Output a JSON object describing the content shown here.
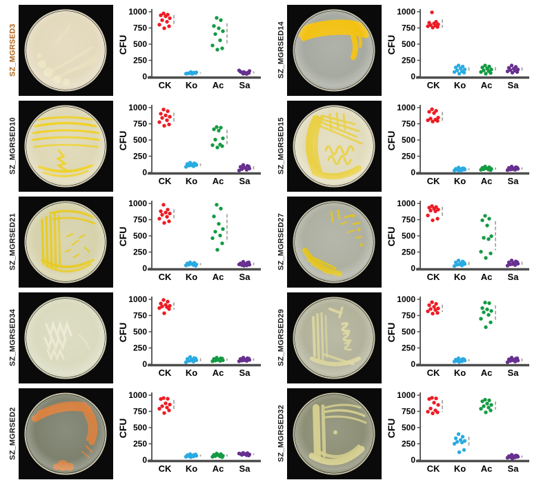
{
  "figure": {
    "background": "#ffffff",
    "categories": [
      "CK",
      "Ko",
      "Ac",
      "Sa"
    ],
    "category_colors": {
      "CK": "#ed1c24",
      "Ko": "#29abe2",
      "Ac": "#149b43",
      "Sa": "#67308f"
    },
    "axis_color": "#4d4d4d",
    "errorbar_color": "#a0a0a0",
    "ylabel": "CFU",
    "yticks": [
      0,
      250,
      500,
      750,
      1000
    ],
    "ylim": [
      0,
      1000
    ]
  },
  "panels": [
    {
      "label": "SZ_MGRSED3",
      "label_color": "#b06820",
      "dish": {
        "bg": "#0a0a0a",
        "agar": "#e3d9bd",
        "rim": "#f0e9d0",
        "growth": "#efe6c4",
        "pattern": "faint-streaks"
      }
    },
    {
      "label": "SZ_MGRSED14",
      "label_color": "#1d1d1b",
      "dish": {
        "bg": "#0a0a0a",
        "agar": "#a7aaa0",
        "rim": "#ded9c2",
        "growth": "#f2c113",
        "pattern": "top-band"
      }
    },
    {
      "label": "SZ_MGRSED10",
      "label_color": "#1d1d1b",
      "dish": {
        "bg": "#0a0a0a",
        "agar": "#ded8b6",
        "rim": "#eee7cc",
        "growth": "#f0d020",
        "pattern": "horizontal-streaks"
      }
    },
    {
      "label": "SZ_MGRSED15",
      "label_color": "#1d1d1b",
      "dish": {
        "bg": "#0a0a0a",
        "agar": "#e2dcbe",
        "rim": "#efe9d0",
        "growth": "#e9cf3e",
        "pattern": "fan-zigzag"
      }
    },
    {
      "label": "SZ_MGRSED21",
      "label_color": "#1d1d1b",
      "dish": {
        "bg": "#0a0a0a",
        "agar": "#d6d2ac",
        "rim": "#e9e4c6",
        "growth": "#e8ca1e",
        "pattern": "left-band-streaks"
      }
    },
    {
      "label": "SZ_MGRSED27",
      "label_color": "#1d1d1b",
      "dish": {
        "bg": "#0a0a0a",
        "agar": "#aeb0a2",
        "rim": "#dcd8be",
        "growth": "#e2c41e",
        "pattern": "diagonal-scatter"
      }
    },
    {
      "label": "SZ_MGRSED34",
      "label_color": "#1d1d1b",
      "dish": {
        "bg": "#0a0a0a",
        "agar": "#d9dabe",
        "rim": "#eaeacd",
        "growth": "#ecead2",
        "pattern": "zigzag-center"
      }
    },
    {
      "label": "SZ_MGRSED29",
      "label_color": "#1d1d1b",
      "dish": {
        "bg": "#0a0a0a",
        "agar": "#b3b39c",
        "rim": "#dedabc",
        "growth": "#ddd79e",
        "pattern": "left-squiggle"
      }
    },
    {
      "label": "SZ_MGRSED2",
      "label_color": "#1d1d1b",
      "dish": {
        "bg": "#0a0a0a",
        "agar": "#7d816e",
        "rim": "#e6dfc0",
        "growth": "#d9813f",
        "pattern": "orange-arc"
      }
    },
    {
      "label": "SZ_MGRSED32",
      "label_color": "#1d1d1b",
      "dish": {
        "bg": "#0a0a0a",
        "agar": "#8d8f76",
        "rim": "#dcd8b4",
        "growth": "#d6d08e",
        "pattern": "left-band-diagonal"
      }
    }
  ],
  "chart_data": [
    {
      "type": "scatter",
      "title": "SZ_MGRSED3",
      "ylabel": "CFU",
      "ylim": [
        0,
        1000
      ],
      "yticks": [
        0,
        250,
        500,
        750,
        1000
      ],
      "categories": [
        "CK",
        "Ko",
        "Ac",
        "Sa"
      ],
      "series": [
        {
          "name": "CK",
          "values": [
            975,
            955,
            945,
            930,
            900,
            870,
            845,
            800,
            775,
            745
          ]
        },
        {
          "name": "Ko",
          "values": [
            55,
            60,
            48,
            42,
            65,
            50,
            58,
            45,
            52,
            70
          ]
        },
        {
          "name": "Ac",
          "values": [
            905,
            870,
            780,
            745,
            700,
            655,
            560,
            480,
            435,
            415
          ]
        },
        {
          "name": "Sa",
          "values": [
            45,
            60,
            75,
            50,
            85,
            65,
            40,
            95,
            55,
            70
          ]
        }
      ]
    },
    {
      "type": "scatter",
      "title": "SZ_MGRSED14",
      "ylabel": "CFU",
      "ylim": [
        0,
        1000
      ],
      "yticks": [
        0,
        250,
        500,
        750,
        1000
      ],
      "categories": [
        "CK",
        "Ko",
        "Ac",
        "Sa"
      ],
      "series": [
        {
          "name": "CK",
          "values": [
            990,
            845,
            830,
            820,
            805,
            795,
            785,
            775,
            765,
            755
          ]
        },
        {
          "name": "Ko",
          "values": [
            170,
            155,
            140,
            125,
            110,
            95,
            80,
            70,
            60,
            45
          ]
        },
        {
          "name": "Ac",
          "values": [
            170,
            155,
            140,
            125,
            110,
            95,
            85,
            70,
            55,
            45
          ]
        },
        {
          "name": "Sa",
          "values": [
            170,
            150,
            135,
            120,
            110,
            100,
            90,
            80,
            70,
            60
          ]
        }
      ]
    },
    {
      "type": "scatter",
      "title": "SZ_MGRSED10",
      "ylabel": "CFU",
      "ylim": [
        0,
        1000
      ],
      "yticks": [
        0,
        250,
        500,
        750,
        1000
      ],
      "categories": [
        "CK",
        "Ko",
        "Ac",
        "Sa"
      ],
      "series": [
        {
          "name": "CK",
          "values": [
            970,
            945,
            905,
            880,
            860,
            840,
            805,
            775,
            740,
            720
          ]
        },
        {
          "name": "Ko",
          "values": [
            150,
            140,
            130,
            120,
            115,
            105,
            95,
            85,
            130,
            110
          ]
        },
        {
          "name": "Ac",
          "values": [
            700,
            690,
            665,
            645,
            525,
            505,
            430,
            420,
            405,
            385
          ]
        },
        {
          "name": "Sa",
          "values": [
            115,
            100,
            85,
            70,
            60,
            50,
            40,
            30,
            90,
            75
          ]
        }
      ]
    },
    {
      "type": "scatter",
      "title": "SZ_MGRSED15",
      "ylabel": "CFU",
      "ylim": [
        0,
        1000
      ],
      "yticks": [
        0,
        250,
        500,
        750,
        1000
      ],
      "categories": [
        "CK",
        "Ko",
        "Ac",
        "Sa"
      ],
      "series": [
        {
          "name": "CK",
          "values": [
            975,
            950,
            935,
            915,
            845,
            830,
            815,
            805,
            795,
            785
          ]
        },
        {
          "name": "Ko",
          "values": [
            75,
            65,
            55,
            50,
            45,
            40,
            35,
            30,
            60,
            25
          ]
        },
        {
          "name": "Ac",
          "values": [
            90,
            80,
            70,
            60,
            55,
            50,
            45,
            40,
            35,
            65
          ]
        },
        {
          "name": "Sa",
          "values": [
            90,
            80,
            70,
            60,
            55,
            45,
            40,
            35,
            75,
            50
          ]
        }
      ]
    },
    {
      "type": "scatter",
      "title": "SZ_MGRSED21",
      "ylabel": "CFU",
      "ylim": [
        0,
        1000
      ],
      "yticks": [
        0,
        250,
        500,
        750,
        1000
      ],
      "categories": [
        "CK",
        "Ko",
        "Ac",
        "Sa"
      ],
      "series": [
        {
          "name": "CK",
          "values": [
            980,
            905,
            880,
            860,
            845,
            825,
            795,
            765,
            725,
            700
          ]
        },
        {
          "name": "Ko",
          "values": [
            90,
            85,
            75,
            65,
            60,
            55,
            50,
            45,
            40,
            70
          ]
        },
        {
          "name": "Ac",
          "values": [
            980,
            920,
            800,
            685,
            605,
            565,
            505,
            465,
            385,
            285
          ]
        },
        {
          "name": "Sa",
          "values": [
            100,
            85,
            75,
            65,
            55,
            50,
            45,
            60,
            90,
            40
          ]
        }
      ]
    },
    {
      "type": "scatter",
      "title": "SZ_MGRSED27",
      "ylabel": "CFU",
      "ylim": [
        0,
        1000
      ],
      "yticks": [
        0,
        250,
        500,
        750,
        1000
      ],
      "categories": [
        "CK",
        "Ko",
        "Ac",
        "Sa"
      ],
      "series": [
        {
          "name": "CK",
          "values": [
            960,
            945,
            935,
            920,
            905,
            890,
            880,
            815,
            765,
            740
          ]
        },
        {
          "name": "Ko",
          "values": [
            120,
            105,
            90,
            75,
            65,
            55,
            45,
            35,
            85,
            60
          ]
        },
        {
          "name": "Ac",
          "values": [
            810,
            765,
            740,
            660,
            495,
            470,
            450,
            255,
            230,
            160
          ]
        },
        {
          "name": "Sa",
          "values": [
            120,
            105,
            90,
            80,
            70,
            60,
            50,
            40,
            95,
            65
          ]
        }
      ]
    },
    {
      "type": "scatter",
      "title": "SZ_MGRSED34",
      "ylabel": "CFU",
      "ylim": [
        0,
        1000
      ],
      "yticks": [
        0,
        250,
        500,
        750,
        1000
      ],
      "categories": [
        "CK",
        "Ko",
        "Ac",
        "Sa"
      ],
      "series": [
        {
          "name": "CK",
          "values": [
            990,
            965,
            935,
            915,
            900,
            890,
            880,
            865,
            850,
            785
          ]
        },
        {
          "name": "Ko",
          "values": [
            110,
            95,
            80,
            70,
            60,
            50,
            40,
            30,
            85,
            55
          ]
        },
        {
          "name": "Ac",
          "values": [
            100,
            90,
            80,
            70,
            60,
            55,
            50,
            45,
            85,
            65
          ]
        },
        {
          "name": "Sa",
          "values": [
            100,
            90,
            80,
            70,
            65,
            55,
            50,
            45,
            85,
            60
          ]
        }
      ]
    },
    {
      "type": "scatter",
      "title": "SZ_MGRSED29",
      "ylabel": "CFU",
      "ylim": [
        0,
        1000
      ],
      "yticks": [
        0,
        250,
        500,
        750,
        1000
      ],
      "categories": [
        "CK",
        "Ko",
        "Ac",
        "Sa"
      ],
      "series": [
        {
          "name": "CK",
          "values": [
            955,
            930,
            910,
            885,
            860,
            850,
            835,
            815,
            790,
            780
          ]
        },
        {
          "name": "Ko",
          "values": [
            90,
            80,
            70,
            60,
            55,
            50,
            45,
            40,
            75,
            35
          ]
        },
        {
          "name": "Ac",
          "values": [
            950,
            940,
            865,
            845,
            820,
            800,
            760,
            700,
            645,
            570
          ]
        },
        {
          "name": "Sa",
          "values": [
            100,
            85,
            75,
            65,
            55,
            50,
            40,
            30,
            90,
            60
          ]
        }
      ]
    },
    {
      "type": "scatter",
      "title": "SZ_MGRSED2",
      "ylabel": "CFU",
      "ylim": [
        0,
        1000
      ],
      "yticks": [
        0,
        250,
        500,
        750,
        1000
      ],
      "categories": [
        "CK",
        "Ko",
        "Ac",
        "Sa"
      ],
      "series": [
        {
          "name": "CK",
          "values": [
            955,
            945,
            940,
            875,
            855,
            830,
            810,
            790,
            765,
            725
          ]
        },
        {
          "name": "Ko",
          "values": [
            90,
            80,
            75,
            70,
            65,
            60,
            55,
            50,
            85,
            45
          ]
        },
        {
          "name": "Ac",
          "values": [
            100,
            90,
            80,
            70,
            65,
            60,
            55,
            50,
            45,
            85
          ]
        },
        {
          "name": "Sa",
          "values": [
            110,
            105,
            95,
            90,
            85,
            80,
            75,
            100,
            70,
            90
          ]
        }
      ]
    },
    {
      "type": "scatter",
      "title": "SZ_MGRSED32",
      "ylabel": "CFU",
      "ylim": [
        0,
        1000
      ],
      "yticks": [
        0,
        250,
        500,
        750,
        1000
      ],
      "categories": [
        "CK",
        "Ko",
        "Ac",
        "Sa"
      ],
      "series": [
        {
          "name": "CK",
          "values": [
            960,
            950,
            940,
            885,
            850,
            795,
            765,
            745,
            735,
            720
          ]
        },
        {
          "name": "Ko",
          "values": [
            400,
            360,
            335,
            310,
            295,
            280,
            270,
            250,
            155,
            120
          ]
        },
        {
          "name": "Ac",
          "values": [
            930,
            920,
            905,
            870,
            850,
            830,
            810,
            790,
            765,
            735
          ]
        },
        {
          "name": "Sa",
          "values": [
            80,
            70,
            60,
            55,
            50,
            45,
            40,
            35,
            65,
            25
          ]
        }
      ]
    }
  ]
}
